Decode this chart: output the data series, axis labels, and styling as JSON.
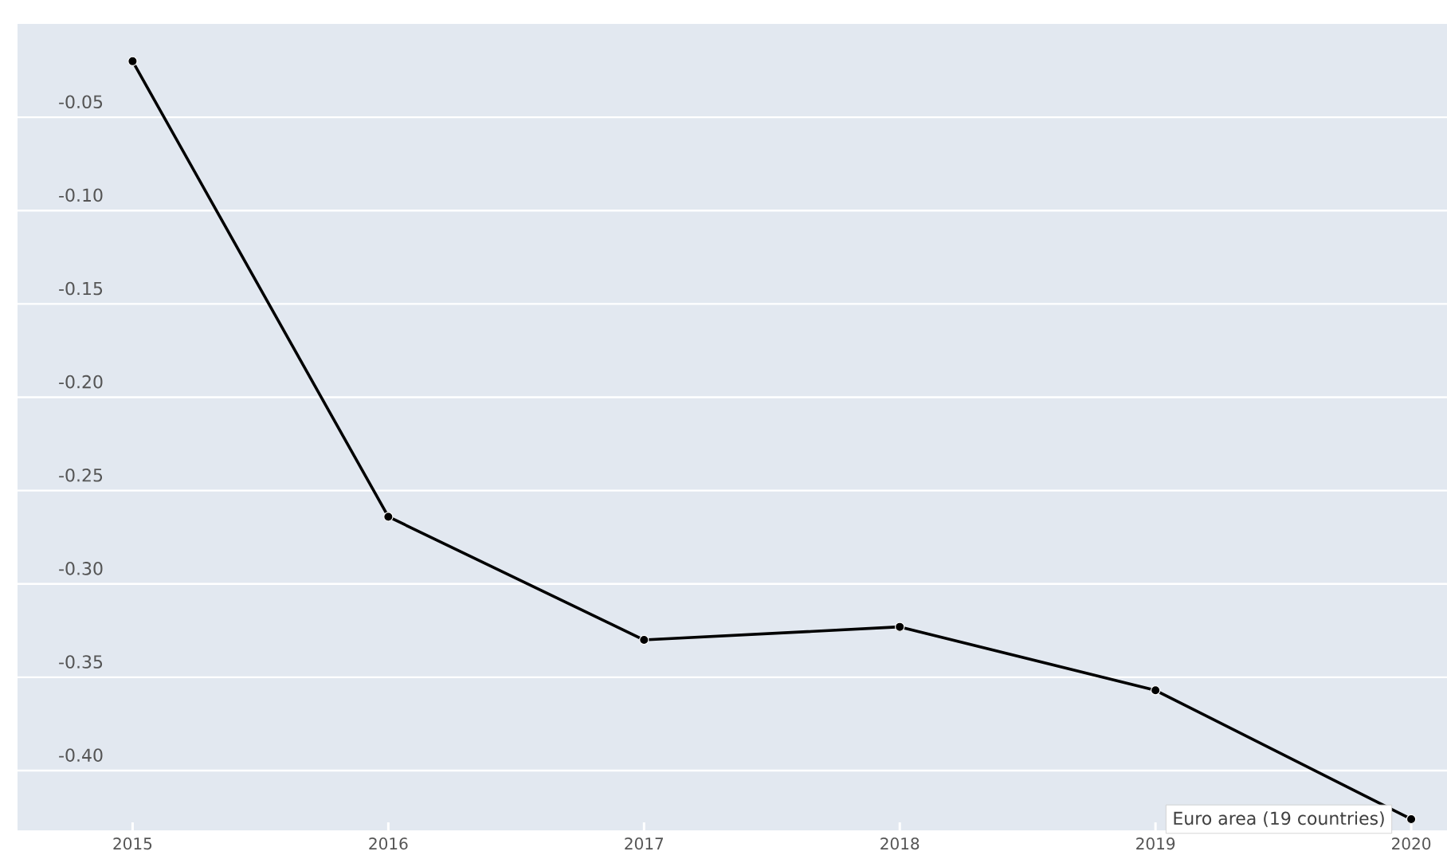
{
  "chart_data": {
    "type": "line",
    "x": [
      2015,
      2016,
      2017,
      2018,
      2019,
      2020
    ],
    "series": [
      {
        "name": "Euro area (19 countries)",
        "color": "#000000",
        "values": [
          -0.02,
          -0.264,
          -0.33,
          -0.323,
          -0.357,
          -0.426
        ]
      }
    ],
    "xlim": [
      2014.55,
      2020.14
    ],
    "xticks": [
      2015,
      2016,
      2017,
      2018,
      2019,
      2020
    ],
    "ylim": [
      -0.432,
      0.0
    ],
    "yticks": [
      {
        "value": -0.05,
        "label": "-0.05"
      },
      {
        "value": -0.1,
        "label": "-0.10"
      },
      {
        "value": -0.15,
        "label": "-0.15"
      },
      {
        "value": -0.2,
        "label": "-0.20"
      },
      {
        "value": -0.25,
        "label": "-0.25"
      },
      {
        "value": -0.3,
        "label": "-0.30"
      },
      {
        "value": -0.35,
        "label": "-0.35"
      },
      {
        "value": -0.4,
        "label": "-0.40"
      }
    ],
    "grid": "y",
    "marker": "circle",
    "line_style": "solid"
  }
}
